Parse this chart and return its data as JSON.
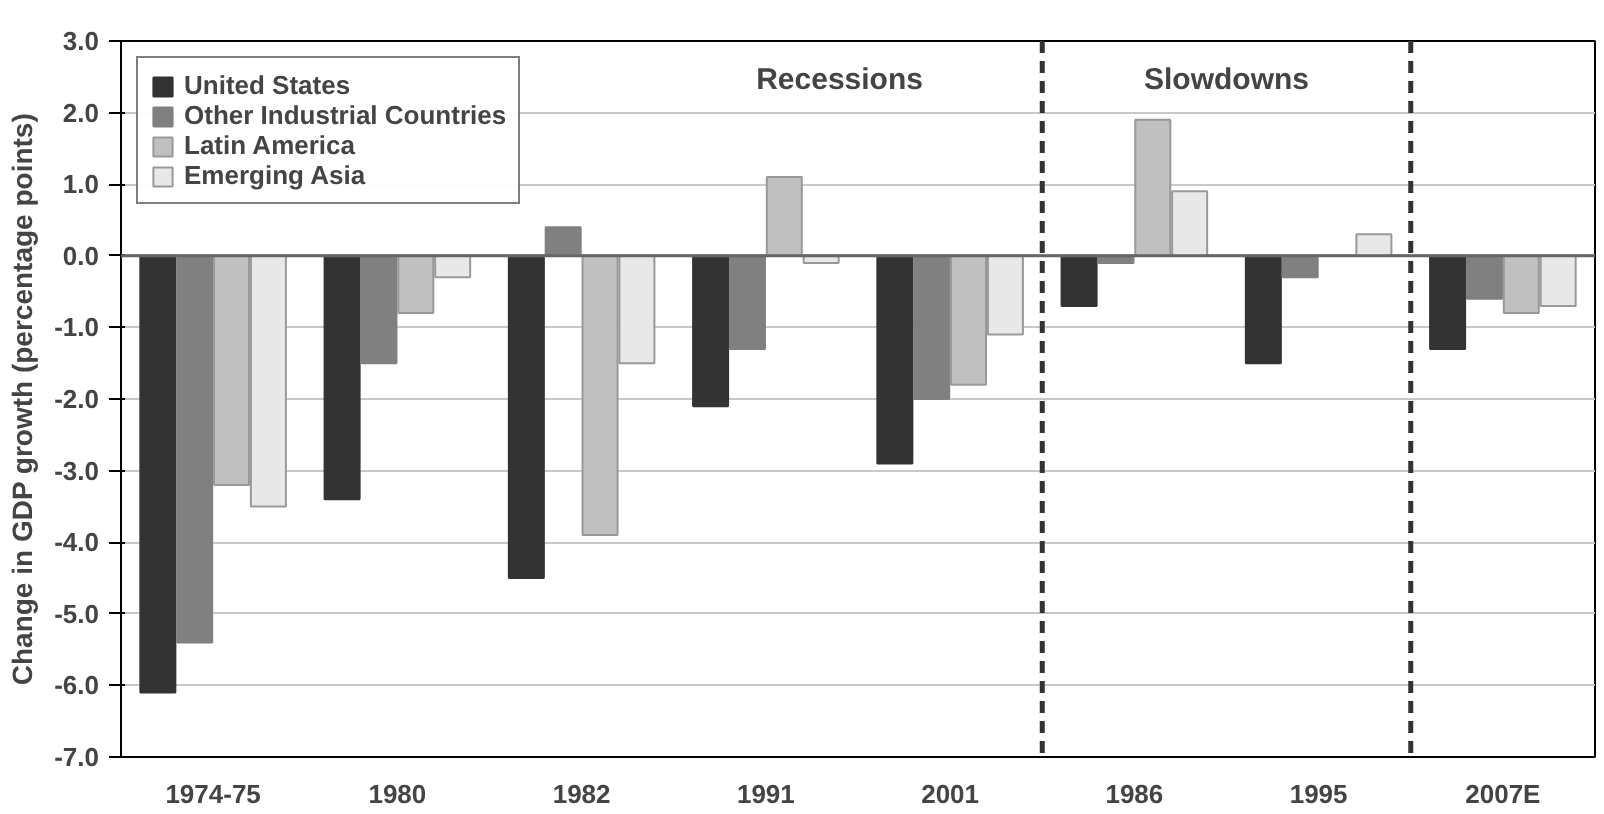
{
  "chart_data": {
    "type": "bar",
    "ylabel": "Change in GDP growth (percentage points)",
    "categories": [
      "1974-75",
      "1980",
      "1982",
      "1991",
      "2001",
      "1986",
      "1995",
      "2007E"
    ],
    "series": [
      {
        "name": "United States",
        "color": "#333333",
        "values": [
          -6.1,
          -3.4,
          -4.5,
          -2.1,
          -2.9,
          -0.7,
          -1.5,
          -1.3
        ]
      },
      {
        "name": "Other Industrial Countries",
        "color": "#808080",
        "values": [
          -5.4,
          -1.5,
          0.4,
          -1.3,
          -2.0,
          -0.1,
          -0.3,
          -0.6
        ]
      },
      {
        "name": "Latin America",
        "color": "#c0c0c0",
        "values": [
          -3.2,
          -0.8,
          -3.9,
          1.1,
          -1.8,
          1.9,
          null,
          -0.8
        ]
      },
      {
        "name": "Emerging Asia",
        "color": "#e8e8e8",
        "values": [
          -3.5,
          -0.3,
          -1.5,
          -0.1,
          -1.1,
          0.9,
          0.3,
          -0.7
        ]
      }
    ],
    "ylim": [
      -7.0,
      3.0
    ],
    "yticks": [
      {
        "value": 3,
        "label": "3.0"
      },
      {
        "value": 2,
        "label": "2.0"
      },
      {
        "value": 1,
        "label": "1.0"
      },
      {
        "value": 0,
        "label": "0.0"
      },
      {
        "value": -1,
        "label": "-1.0"
      },
      {
        "value": -2,
        "label": "-2.0"
      },
      {
        "value": -3,
        "label": "-3.0"
      },
      {
        "value": -4,
        "label": "-4.0"
      },
      {
        "value": -5,
        "label": "-5.0"
      },
      {
        "value": -6,
        "label": "-6.0"
      },
      {
        "value": -7,
        "label": "-7.0"
      }
    ],
    "grid": "y",
    "legend": "top left",
    "annotations": [
      "Recessions",
      "Slowdowns"
    ]
  }
}
